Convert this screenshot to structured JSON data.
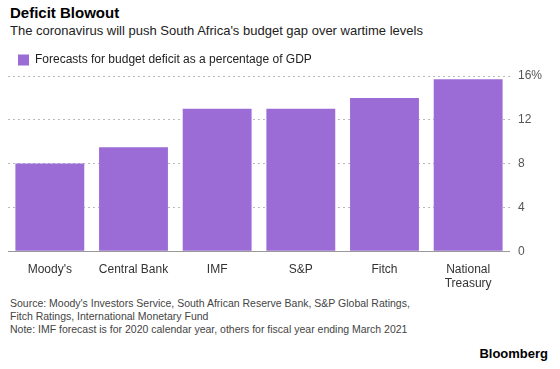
{
  "chart_data": {
    "type": "bar",
    "title": "Deficit Blowout",
    "subtitle": "The coronavirus will push South Africa's budget gap over wartime levels",
    "series": [
      {
        "name": "Forecasts for budget deficit as a percentage of GDP",
        "color": "#9b6bd6",
        "values": [
          8.0,
          9.5,
          13.0,
          13.0,
          14.0,
          15.7
        ]
      }
    ],
    "categories": [
      "Moody's",
      "Central Bank",
      "IMF",
      "S&P",
      "Fitch",
      "National Treasury"
    ],
    "ylim": [
      0,
      16
    ],
    "yticks": [
      0,
      4,
      8,
      12,
      {
        "value": 16,
        "label": "16%"
      }
    ],
    "grid": true,
    "legend": "top-left",
    "source": "Source: Moody's Investors Service, South African Reserve Bank, S&P Global Ratings, Fitch Ratings, International Monetary Fund",
    "note": "Note: IMF forecast is for 2020 calendar year, others for fiscal year ending March 2021",
    "logo": "Bloomberg"
  }
}
